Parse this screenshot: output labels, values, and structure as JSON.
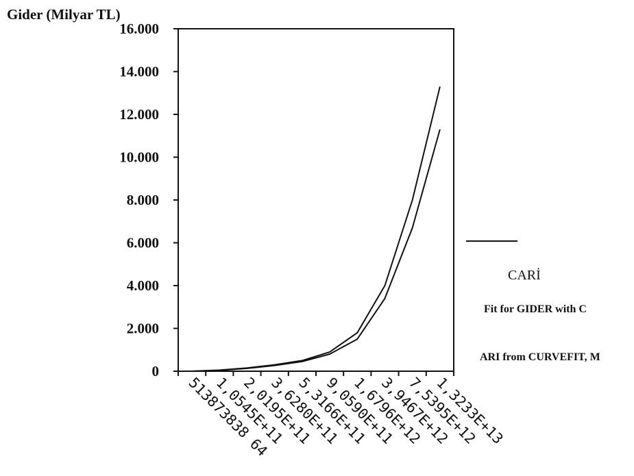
{
  "chart_data": {
    "type": "line",
    "ylabel": "Gider (Milyar TL)",
    "xlabel": "",
    "title": "",
    "ylim": [
      0,
      16000
    ],
    "yticks": [
      "0",
      "2.000",
      "4.000",
      "6.000",
      "8.000",
      "10.000",
      "12.000",
      "14.000",
      "16.000"
    ],
    "categories": [
      "513873838 64",
      "1,0545E+11",
      "2,0195E+11",
      "3,6280E+11",
      "5,3166E+11",
      "9,0590E+11",
      "1,6796E+12",
      "3,9467E+12",
      "7,5395E+12",
      "1,3233E+13"
    ],
    "category_labels": [
      "513873838 64",
      "1,0545E+11",
      "2,0195E+11",
      "3,6280E+11",
      "5,3166E+11",
      "9,0590E+11",
      "1,6796E+12",
      "3,9467E+12",
      "7,5395E+12",
      "1,3233E+13"
    ],
    "series": [
      {
        "values": [
          0,
          50,
          150,
          300,
          500,
          900,
          1800,
          4000,
          8000,
          13300
        ]
      },
      {
        "values": [
          0,
          40,
          130,
          270,
          450,
          800,
          1500,
          3400,
          6700,
          11300
        ]
      }
    ],
    "grid": false,
    "legend_position": "right",
    "legend": {
      "main": "CARİ",
      "line1": "Fit for GIDER with C",
      "line2": "ARI from CURVEFIT, M"
    }
  }
}
